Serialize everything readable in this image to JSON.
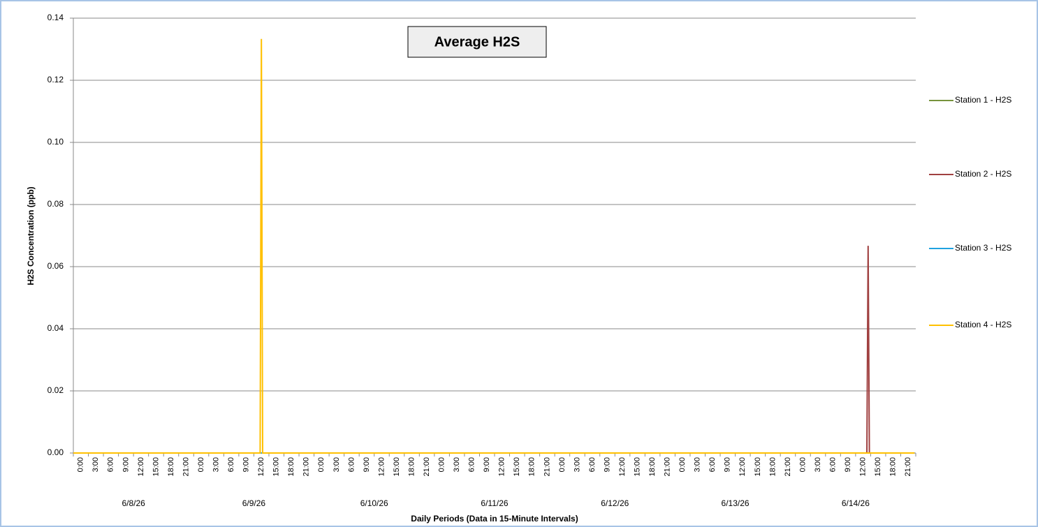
{
  "chart_data": {
    "type": "line",
    "title": "Average H2S",
    "x_label": "Daily Periods (Data in 15-Minute Intervals)",
    "y_label": "H2S Concentration (ppb)",
    "legend": "right",
    "grid": true,
    "xlim": [
      0,
      168
    ],
    "ylim": [
      0,
      0.14
    ],
    "yticks": [
      {
        "value": 0,
        "label": "0.00"
      },
      {
        "value": 0.02,
        "label": "0.02"
      },
      {
        "value": 0.04,
        "label": "0.04"
      },
      {
        "value": 0.06,
        "label": "0.06"
      },
      {
        "value": 0.08,
        "label": "0.08"
      },
      {
        "value": 0.1,
        "label": "0.10"
      },
      {
        "value": 0.12,
        "label": "0.12"
      },
      {
        "value": 0.14,
        "label": "0.14"
      }
    ],
    "xticks": [
      {
        "value": 0,
        "label": "0:00"
      },
      {
        "value": 3,
        "label": "3:00"
      },
      {
        "value": 6,
        "label": "6:00"
      },
      {
        "value": 9,
        "label": "9:00"
      },
      {
        "value": 12,
        "label": "12:00"
      },
      {
        "value": 15,
        "label": "15:00"
      },
      {
        "value": 18,
        "label": "18:00"
      },
      {
        "value": 21,
        "label": "21:00"
      },
      {
        "value": 24,
        "label": "0:00"
      },
      {
        "value": 27,
        "label": "3:00"
      },
      {
        "value": 30,
        "label": "6:00"
      },
      {
        "value": 33,
        "label": "9:00"
      },
      {
        "value": 36,
        "label": "12:00"
      },
      {
        "value": 39,
        "label": "15:00"
      },
      {
        "value": 42,
        "label": "18:00"
      },
      {
        "value": 45,
        "label": "21:00"
      },
      {
        "value": 48,
        "label": "0:00"
      },
      {
        "value": 51,
        "label": "3:00"
      },
      {
        "value": 54,
        "label": "6:00"
      },
      {
        "value": 57,
        "label": "9:00"
      },
      {
        "value": 60,
        "label": "12:00"
      },
      {
        "value": 63,
        "label": "15:00"
      },
      {
        "value": 66,
        "label": "18:00"
      },
      {
        "value": 69,
        "label": "21:00"
      },
      {
        "value": 72,
        "label": "0:00"
      },
      {
        "value": 75,
        "label": "3:00"
      },
      {
        "value": 78,
        "label": "6:00"
      },
      {
        "value": 81,
        "label": "9:00"
      },
      {
        "value": 84,
        "label": "12:00"
      },
      {
        "value": 87,
        "label": "15:00"
      },
      {
        "value": 90,
        "label": "18:00"
      },
      {
        "value": 93,
        "label": "21:00"
      },
      {
        "value": 96,
        "label": "0:00"
      },
      {
        "value": 99,
        "label": "3:00"
      },
      {
        "value": 102,
        "label": "6:00"
      },
      {
        "value": 105,
        "label": "9:00"
      },
      {
        "value": 108,
        "label": "12:00"
      },
      {
        "value": 111,
        "label": "15:00"
      },
      {
        "value": 114,
        "label": "18:00"
      },
      {
        "value": 117,
        "label": "21:00"
      },
      {
        "value": 120,
        "label": "0:00"
      },
      {
        "value": 123,
        "label": "3:00"
      },
      {
        "value": 126,
        "label": "6:00"
      },
      {
        "value": 129,
        "label": "9:00"
      },
      {
        "value": 132,
        "label": "12:00"
      },
      {
        "value": 135,
        "label": "15:00"
      },
      {
        "value": 138,
        "label": "18:00"
      },
      {
        "value": 141,
        "label": "21:00"
      },
      {
        "value": 144,
        "label": "0:00"
      },
      {
        "value": 147,
        "label": "3:00"
      },
      {
        "value": 150,
        "label": "6:00"
      },
      {
        "value": 153,
        "label": "9:00"
      },
      {
        "value": 156,
        "label": "12:00"
      },
      {
        "value": 159,
        "label": "15:00"
      },
      {
        "value": 162,
        "label": "18:00"
      },
      {
        "value": 165,
        "label": "21:00"
      }
    ],
    "x_groups": [
      {
        "value": 12,
        "label": "6/8/26"
      },
      {
        "value": 36,
        "label": "6/9/26"
      },
      {
        "value": 60,
        "label": "6/10/26"
      },
      {
        "value": 84,
        "label": "6/11/26"
      },
      {
        "value": 108,
        "label": "6/12/26"
      },
      {
        "value": 132,
        "label": "6/13/26"
      },
      {
        "value": 156,
        "label": "6/14/26"
      }
    ],
    "series": [
      {
        "name": "Station 1 - H2S",
        "color": "#77933c",
        "x": [
          0,
          167.75
        ],
        "values": [
          0,
          0
        ]
      },
      {
        "name": "Station 2 - H2S",
        "color": "#a04040",
        "x": [
          0,
          158.25,
          158.5,
          158.75,
          167.75
        ],
        "values": [
          0,
          0,
          0.0667,
          0,
          0
        ]
      },
      {
        "name": "Station 3 - H2S",
        "color": "#1fa2e0",
        "x": [
          0,
          167.75
        ],
        "values": [
          0,
          0
        ]
      },
      {
        "name": "Station 4 - H2S",
        "color": "#ffc000",
        "x": [
          0,
          37.25,
          37.5,
          37.75,
          167.75
        ],
        "values": [
          0,
          0,
          0.1333,
          0,
          0
        ]
      }
    ]
  }
}
